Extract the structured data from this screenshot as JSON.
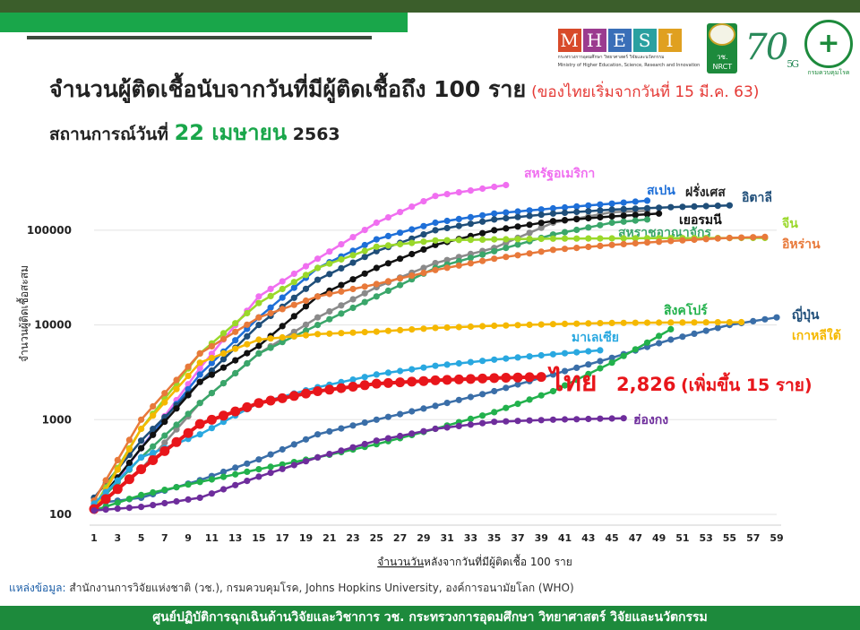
{
  "header": {
    "title": "จำนวนผู้ติดเชื้อนับจากวันที่มีผู้ติดเชื้อถึง 100 ราย",
    "title_note": "(ของไทยเริ่มจากวันที่ 15 มี.ค. 63)",
    "subtitle_prefix": "สถานการณ์วันที่",
    "subtitle_date": "22 เมษายน",
    "subtitle_year": "2563"
  },
  "logos": {
    "mhesi_letters": [
      "M",
      "H",
      "E",
      "S",
      "I"
    ],
    "mhesi_colors": [
      "#d84a2a",
      "#9b3b8f",
      "#3a6fb8",
      "#2aa0a0",
      "#e0a020"
    ],
    "mhesi_text": "กระทรวงการอุดมศึกษา วิทยาศาสตร์ วิจัยและนวัตกรรม",
    "mhesi_text_en": "Ministry of Higher Education, Science, Research and Innovation",
    "nrct_label": "วช.",
    "nrct_en": "NRCT",
    "anniversary": "70",
    "anniversary_sub": "5G",
    "ddc_label": "กรมควบคุมโรค"
  },
  "chart_data": {
    "type": "line",
    "title": "จำนวนผู้ติดเชื้อนับจากวันที่มีผู้ติดเชื้อถึง 100 ราย",
    "xlabel": "จำนวนวันหลังจากวันที่มีผู้ติดเชื้อ 100 ราย",
    "xlabel_underlined": "จำนวนวัน",
    "xlabel_rest": "หลังจากวันที่มีผู้ติดเชื้อ 100 ราย",
    "ylabel": "จำนวนผู้ติดเชื้อสะสม",
    "yscale": "log",
    "xlim": [
      1,
      59
    ],
    "ylim": [
      100,
      600000
    ],
    "x_ticks": [
      1,
      3,
      5,
      7,
      9,
      11,
      13,
      15,
      17,
      19,
      21,
      23,
      25,
      27,
      29,
      31,
      33,
      35,
      37,
      39,
      41,
      43,
      45,
      47,
      49,
      51,
      53,
      55,
      57,
      59
    ],
    "y_ticks": [
      100,
      1000,
      10000,
      100000
    ],
    "y_tick_labels": [
      "100",
      "1000",
      "10000",
      "100000"
    ],
    "grid": "horizontal",
    "series": [
      {
        "name": "สหรัฐอเมริกา",
        "color": "#f06ff0",
        "anchors": [
          [
            1,
            110
          ],
          [
            5,
            500
          ],
          [
            10,
            3500
          ],
          [
            15,
            20000
          ],
          [
            20,
            50000
          ],
          [
            25,
            120000
          ],
          [
            30,
            230000
          ],
          [
            36,
            300000
          ]
        ]
      },
      {
        "name": "สเปน",
        "color": "#1e6fd8",
        "anchors": [
          [
            1,
            120
          ],
          [
            5,
            500
          ],
          [
            10,
            3000
          ],
          [
            15,
            12000
          ],
          [
            20,
            40000
          ],
          [
            25,
            80000
          ],
          [
            30,
            120000
          ],
          [
            35,
            150000
          ],
          [
            40,
            170000
          ],
          [
            48,
            205000
          ]
        ]
      },
      {
        "name": "ฝรั่งเศส",
        "color": "#8a8a8a",
        "anchors": [
          [
            1,
            110
          ],
          [
            5,
            300
          ],
          [
            10,
            1500
          ],
          [
            15,
            5000
          ],
          [
            20,
            12000
          ],
          [
            25,
            25000
          ],
          [
            30,
            45000
          ],
          [
            35,
            65000
          ],
          [
            40,
            120000
          ],
          [
            45,
            155000
          ],
          [
            48,
            160000
          ]
        ]
      },
      {
        "name": "อิตาลี",
        "color": "#1f4e79",
        "anchors": [
          [
            1,
            150
          ],
          [
            5,
            600
          ],
          [
            10,
            2500
          ],
          [
            15,
            10000
          ],
          [
            20,
            30000
          ],
          [
            25,
            60000
          ],
          [
            30,
            100000
          ],
          [
            35,
            130000
          ],
          [
            40,
            150000
          ],
          [
            45,
            165000
          ],
          [
            50,
            175000
          ],
          [
            55,
            183000
          ]
        ]
      },
      {
        "name": "เยอรมนี",
        "color": "#111111",
        "anchors": [
          [
            1,
            120
          ],
          [
            5,
            500
          ],
          [
            10,
            2500
          ],
          [
            15,
            6000
          ],
          [
            20,
            20000
          ],
          [
            25,
            40000
          ],
          [
            30,
            70000
          ],
          [
            35,
            100000
          ],
          [
            40,
            125000
          ],
          [
            45,
            140000
          ],
          [
            49,
            150000
          ]
        ]
      },
      {
        "name": "สหราชอาณาจักร",
        "color": "#3aa66a",
        "anchors": [
          [
            1,
            120
          ],
          [
            5,
            400
          ],
          [
            10,
            1500
          ],
          [
            15,
            5000
          ],
          [
            20,
            10000
          ],
          [
            25,
            20000
          ],
          [
            30,
            40000
          ],
          [
            35,
            60000
          ],
          [
            40,
            90000
          ],
          [
            45,
            120000
          ],
          [
            48,
            130000
          ]
        ]
      },
      {
        "name": "จีน",
        "color": "#9ad82a",
        "anchors": [
          [
            1,
            120
          ],
          [
            5,
            800
          ],
          [
            10,
            5000
          ],
          [
            15,
            17000
          ],
          [
            20,
            40000
          ],
          [
            25,
            67000
          ],
          [
            30,
            78000
          ],
          [
            35,
            80000
          ],
          [
            40,
            81500
          ],
          [
            50,
            82500
          ],
          [
            58,
            83000
          ]
        ]
      },
      {
        "name": "อิหร่าน",
        "color": "#e8793a",
        "anchors": [
          [
            1,
            140
          ],
          [
            5,
            1000
          ],
          [
            10,
            5000
          ],
          [
            15,
            12000
          ],
          [
            20,
            20000
          ],
          [
            25,
            27000
          ],
          [
            30,
            38000
          ],
          [
            35,
            50000
          ],
          [
            40,
            62000
          ],
          [
            45,
            70000
          ],
          [
            50,
            77000
          ],
          [
            55,
            83000
          ],
          [
            58,
            85000
          ]
        ]
      },
      {
        "name": "ญี่ปุ่น",
        "color": "#3a6ea8",
        "anchors": [
          [
            1,
            130
          ],
          [
            5,
            150
          ],
          [
            10,
            230
          ],
          [
            15,
            380
          ],
          [
            20,
            700
          ],
          [
            25,
            1000
          ],
          [
            30,
            1400
          ],
          [
            35,
            2000
          ],
          [
            40,
            3000
          ],
          [
            45,
            4500
          ],
          [
            50,
            7000
          ],
          [
            55,
            10000
          ],
          [
            59,
            12000
          ]
        ]
      },
      {
        "name": "เกาหลีใต้",
        "color": "#f5b800",
        "anchors": [
          [
            1,
            110
          ],
          [
            5,
            800
          ],
          [
            10,
            4000
          ],
          [
            15,
            7000
          ],
          [
            20,
            8000
          ],
          [
            25,
            8500
          ],
          [
            30,
            9300
          ],
          [
            35,
            9800
          ],
          [
            40,
            10200
          ],
          [
            45,
            10500
          ],
          [
            50,
            10600
          ],
          [
            56,
            10700
          ]
        ]
      },
      {
        "name": "สิงคโปร์",
        "color": "#22b14c",
        "anchors": [
          [
            1,
            110
          ],
          [
            5,
            160
          ],
          [
            10,
            220
          ],
          [
            15,
            300
          ],
          [
            20,
            400
          ],
          [
            25,
            550
          ],
          [
            30,
            800
          ],
          [
            35,
            1200
          ],
          [
            40,
            2000
          ],
          [
            45,
            4000
          ],
          [
            50,
            9000
          ]
        ]
      },
      {
        "name": "มาเลเซีย",
        "color": "#29a8e0",
        "anchors": [
          [
            1,
            130
          ],
          [
            5,
            400
          ],
          [
            10,
            700
          ],
          [
            15,
            1500
          ],
          [
            20,
            2200
          ],
          [
            25,
            3000
          ],
          [
            30,
            3700
          ],
          [
            35,
            4300
          ],
          [
            40,
            4900
          ],
          [
            44,
            5400
          ]
        ]
      },
      {
        "name": "ไทย",
        "color": "#e8161b",
        "anchors": [
          [
            1,
            114
          ],
          [
            5,
            300
          ],
          [
            10,
            900
          ],
          [
            15,
            1500
          ],
          [
            20,
            2000
          ],
          [
            25,
            2400
          ],
          [
            30,
            2600
          ],
          [
            35,
            2750
          ],
          [
            39,
            2826
          ]
        ]
      },
      {
        "name": "ฮ่องกง",
        "color": "#6e2d9c",
        "anchors": [
          [
            1,
            110
          ],
          [
            5,
            120
          ],
          [
            10,
            150
          ],
          [
            15,
            250
          ],
          [
            20,
            400
          ],
          [
            25,
            600
          ],
          [
            30,
            800
          ],
          [
            35,
            950
          ],
          [
            40,
            1000
          ],
          [
            46,
            1035
          ]
        ]
      }
    ],
    "thai_callout": {
      "name": "ไทย",
      "value": "2,826",
      "note": "(เพิ่มขึ้น 15 ราย)"
    }
  },
  "source": {
    "label": "แหล่งข้อมูล:",
    "text": "สำนักงานการวิจัยแห่งชาติ (วช.), กรมควบคุมโรค, Johns Hopkins University, องค์การอนามัยโลก (WHO)"
  },
  "footer": {
    "text": "ศูนย์ปฏิบัติการฉุกเฉินด้านวิจัยและวิชาการ   วช.   กระทรวงการอุดมศึกษา วิทยาศาสตร์ วิจัยและนวัตกรรม"
  }
}
